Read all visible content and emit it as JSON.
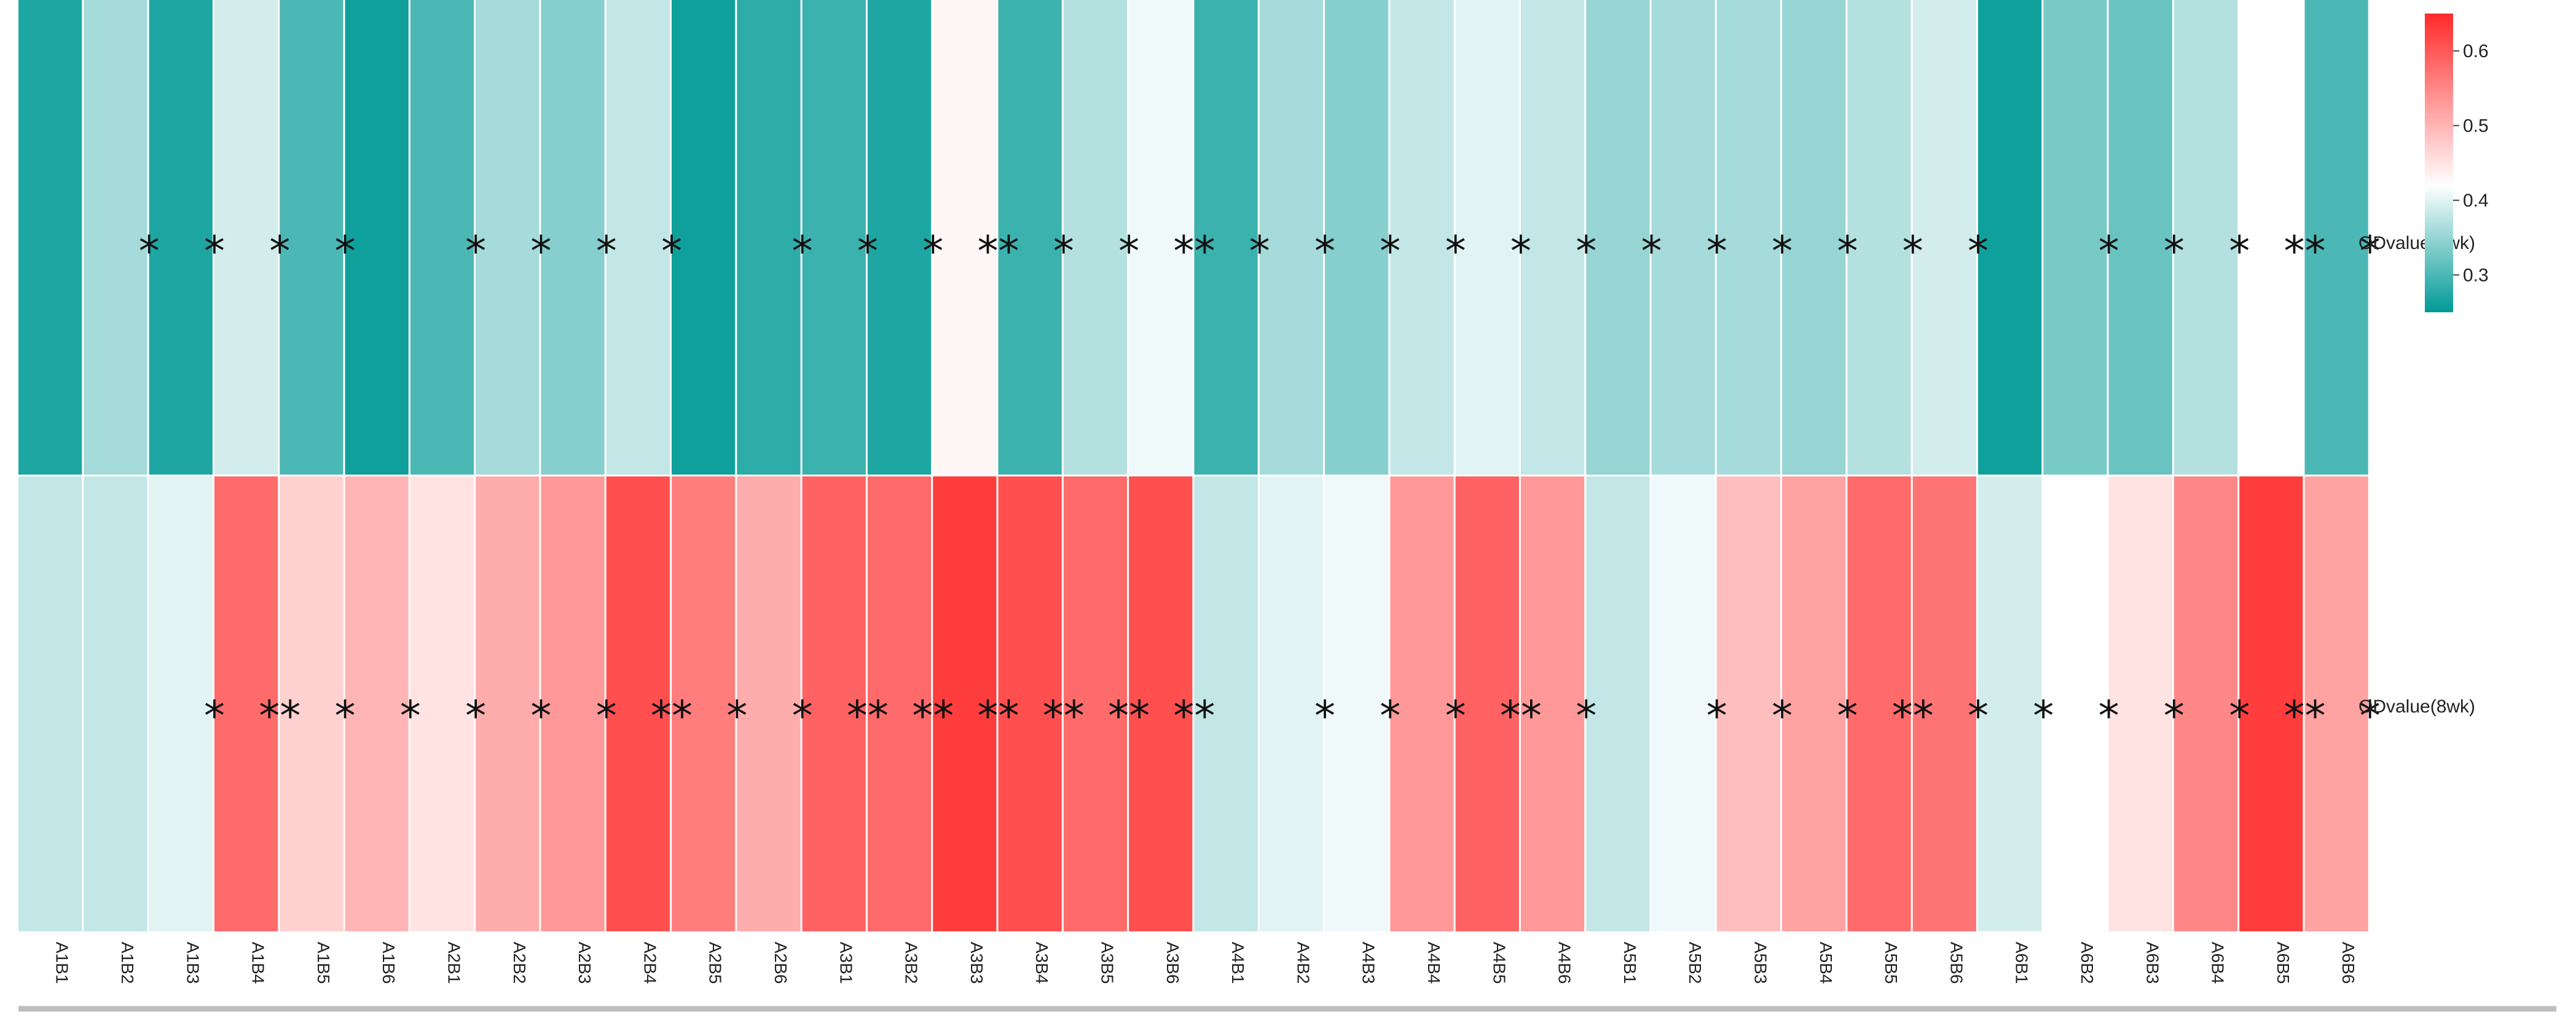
{
  "chart_data": {
    "type": "heatmap",
    "title": "",
    "xlabel": "",
    "ylabel": "",
    "rows": [
      "ODvalue(4wk)",
      "ODvalue(8wk)"
    ],
    "columns": [
      "A1B1",
      "A1B2",
      "A1B3",
      "A1B4",
      "A1B5",
      "A1B6",
      "A2B1",
      "A2B2",
      "A2B3",
      "A2B4",
      "A2B5",
      "A2B6",
      "A3B1",
      "A3B2",
      "A3B3",
      "A3B4",
      "A3B5",
      "A3B6",
      "A4B1",
      "A4B2",
      "A4B3",
      "A4B4",
      "A4B5",
      "A4B6",
      "A5B1",
      "A5B2",
      "A5B3",
      "A5B4",
      "A5B5",
      "A5B6",
      "A6B1",
      "A6B2",
      "A6B3",
      "A6B4",
      "A6B5",
      "A6B6"
    ],
    "values": [
      [
        0.27,
        0.36,
        0.27,
        0.39,
        0.3,
        0.26,
        0.3,
        0.36,
        0.34,
        0.38,
        0.26,
        0.28,
        0.29,
        0.27,
        0.43,
        0.29,
        0.37,
        0.41,
        0.29,
        0.36,
        0.34,
        0.38,
        0.4,
        0.38,
        0.35,
        0.36,
        0.36,
        0.35,
        0.37,
        0.39,
        0.26,
        0.33,
        0.32,
        0.37,
        0.42,
        0.3
      ],
      [
        0.38,
        0.38,
        0.4,
        0.58,
        0.47,
        0.5,
        0.45,
        0.51,
        0.53,
        0.61,
        0.56,
        0.51,
        0.59,
        0.58,
        0.63,
        0.61,
        0.58,
        0.61,
        0.38,
        0.4,
        0.41,
        0.53,
        0.59,
        0.53,
        0.38,
        0.41,
        0.49,
        0.52,
        0.58,
        0.57,
        0.39,
        0.42,
        0.45,
        0.55,
        0.63,
        0.52
      ]
    ],
    "significance": [
      [
        "",
        "*",
        "*",
        "*",
        "*",
        "",
        "*",
        "*",
        "*",
        "*",
        "",
        "*",
        "*",
        "*",
        "**",
        "*",
        "*",
        "**",
        "*",
        "*",
        "*",
        "*",
        "*",
        "*",
        "*",
        "*",
        "*",
        "*",
        "*",
        "*",
        "",
        "*",
        "*",
        "*",
        "**",
        "*"
      ],
      [
        "",
        "",
        "*",
        "**",
        "*",
        "*",
        "*",
        "*",
        "*",
        "**",
        "*",
        "*",
        "**",
        "**",
        "**",
        "**",
        "**",
        "**",
        "",
        "*",
        "*",
        "*",
        "**",
        "*",
        "",
        "*",
        "*",
        "*",
        "**",
        "*",
        "*",
        "*",
        "*",
        "*",
        "**",
        "*"
      ]
    ],
    "colorbar": {
      "min": 0.25,
      "max": 0.65,
      "ticks": [
        "0.3",
        "0.4",
        "0.5",
        "0.6"
      ],
      "tick_values": [
        0.3,
        0.4,
        0.5,
        0.6
      ],
      "colors": [
        "#009a96",
        "#ffffff",
        "#ff2a2a"
      ],
      "mid": 0.42
    },
    "grid": false,
    "legend": "right"
  }
}
